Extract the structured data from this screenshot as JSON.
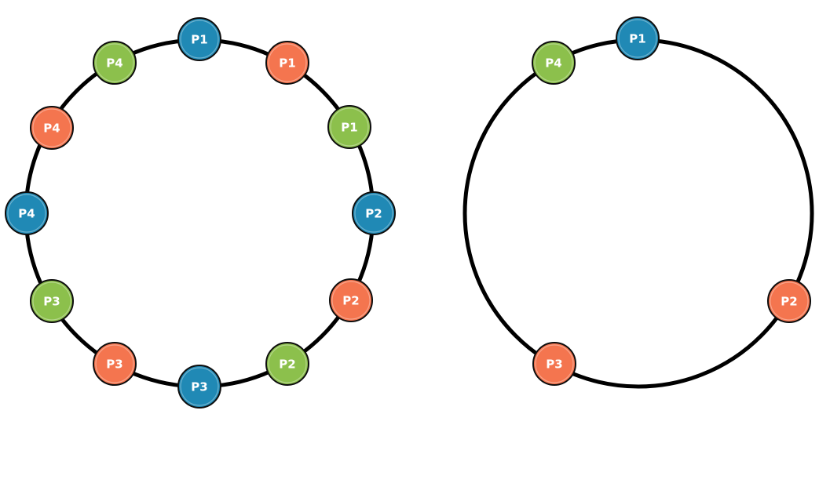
{
  "colors": {
    "blue": "#2089b5",
    "orange": "#f4754f",
    "green": "#8cc04c",
    "ring": "#000000",
    "node_border": "#0d0d0d"
  },
  "rings": [
    {
      "id": "left-ring",
      "nodes": [
        {
          "label": "P1",
          "color": "blue"
        },
        {
          "label": "P1",
          "color": "orange"
        },
        {
          "label": "P1",
          "color": "green"
        },
        {
          "label": "P2",
          "color": "blue"
        },
        {
          "label": "P2",
          "color": "orange"
        },
        {
          "label": "P2",
          "color": "green"
        },
        {
          "label": "P3",
          "color": "blue"
        },
        {
          "label": "P3",
          "color": "orange"
        },
        {
          "label": "P3",
          "color": "green"
        },
        {
          "label": "P4",
          "color": "blue"
        },
        {
          "label": "P4",
          "color": "orange"
        },
        {
          "label": "P4",
          "color": "green"
        }
      ]
    },
    {
      "id": "right-ring",
      "nodes": [
        {
          "label": "P1",
          "color": "blue"
        },
        {
          "label": "P2",
          "color": "orange"
        },
        {
          "label": "P3",
          "color": "orange"
        },
        {
          "label": "P4",
          "color": "green"
        }
      ]
    }
  ]
}
